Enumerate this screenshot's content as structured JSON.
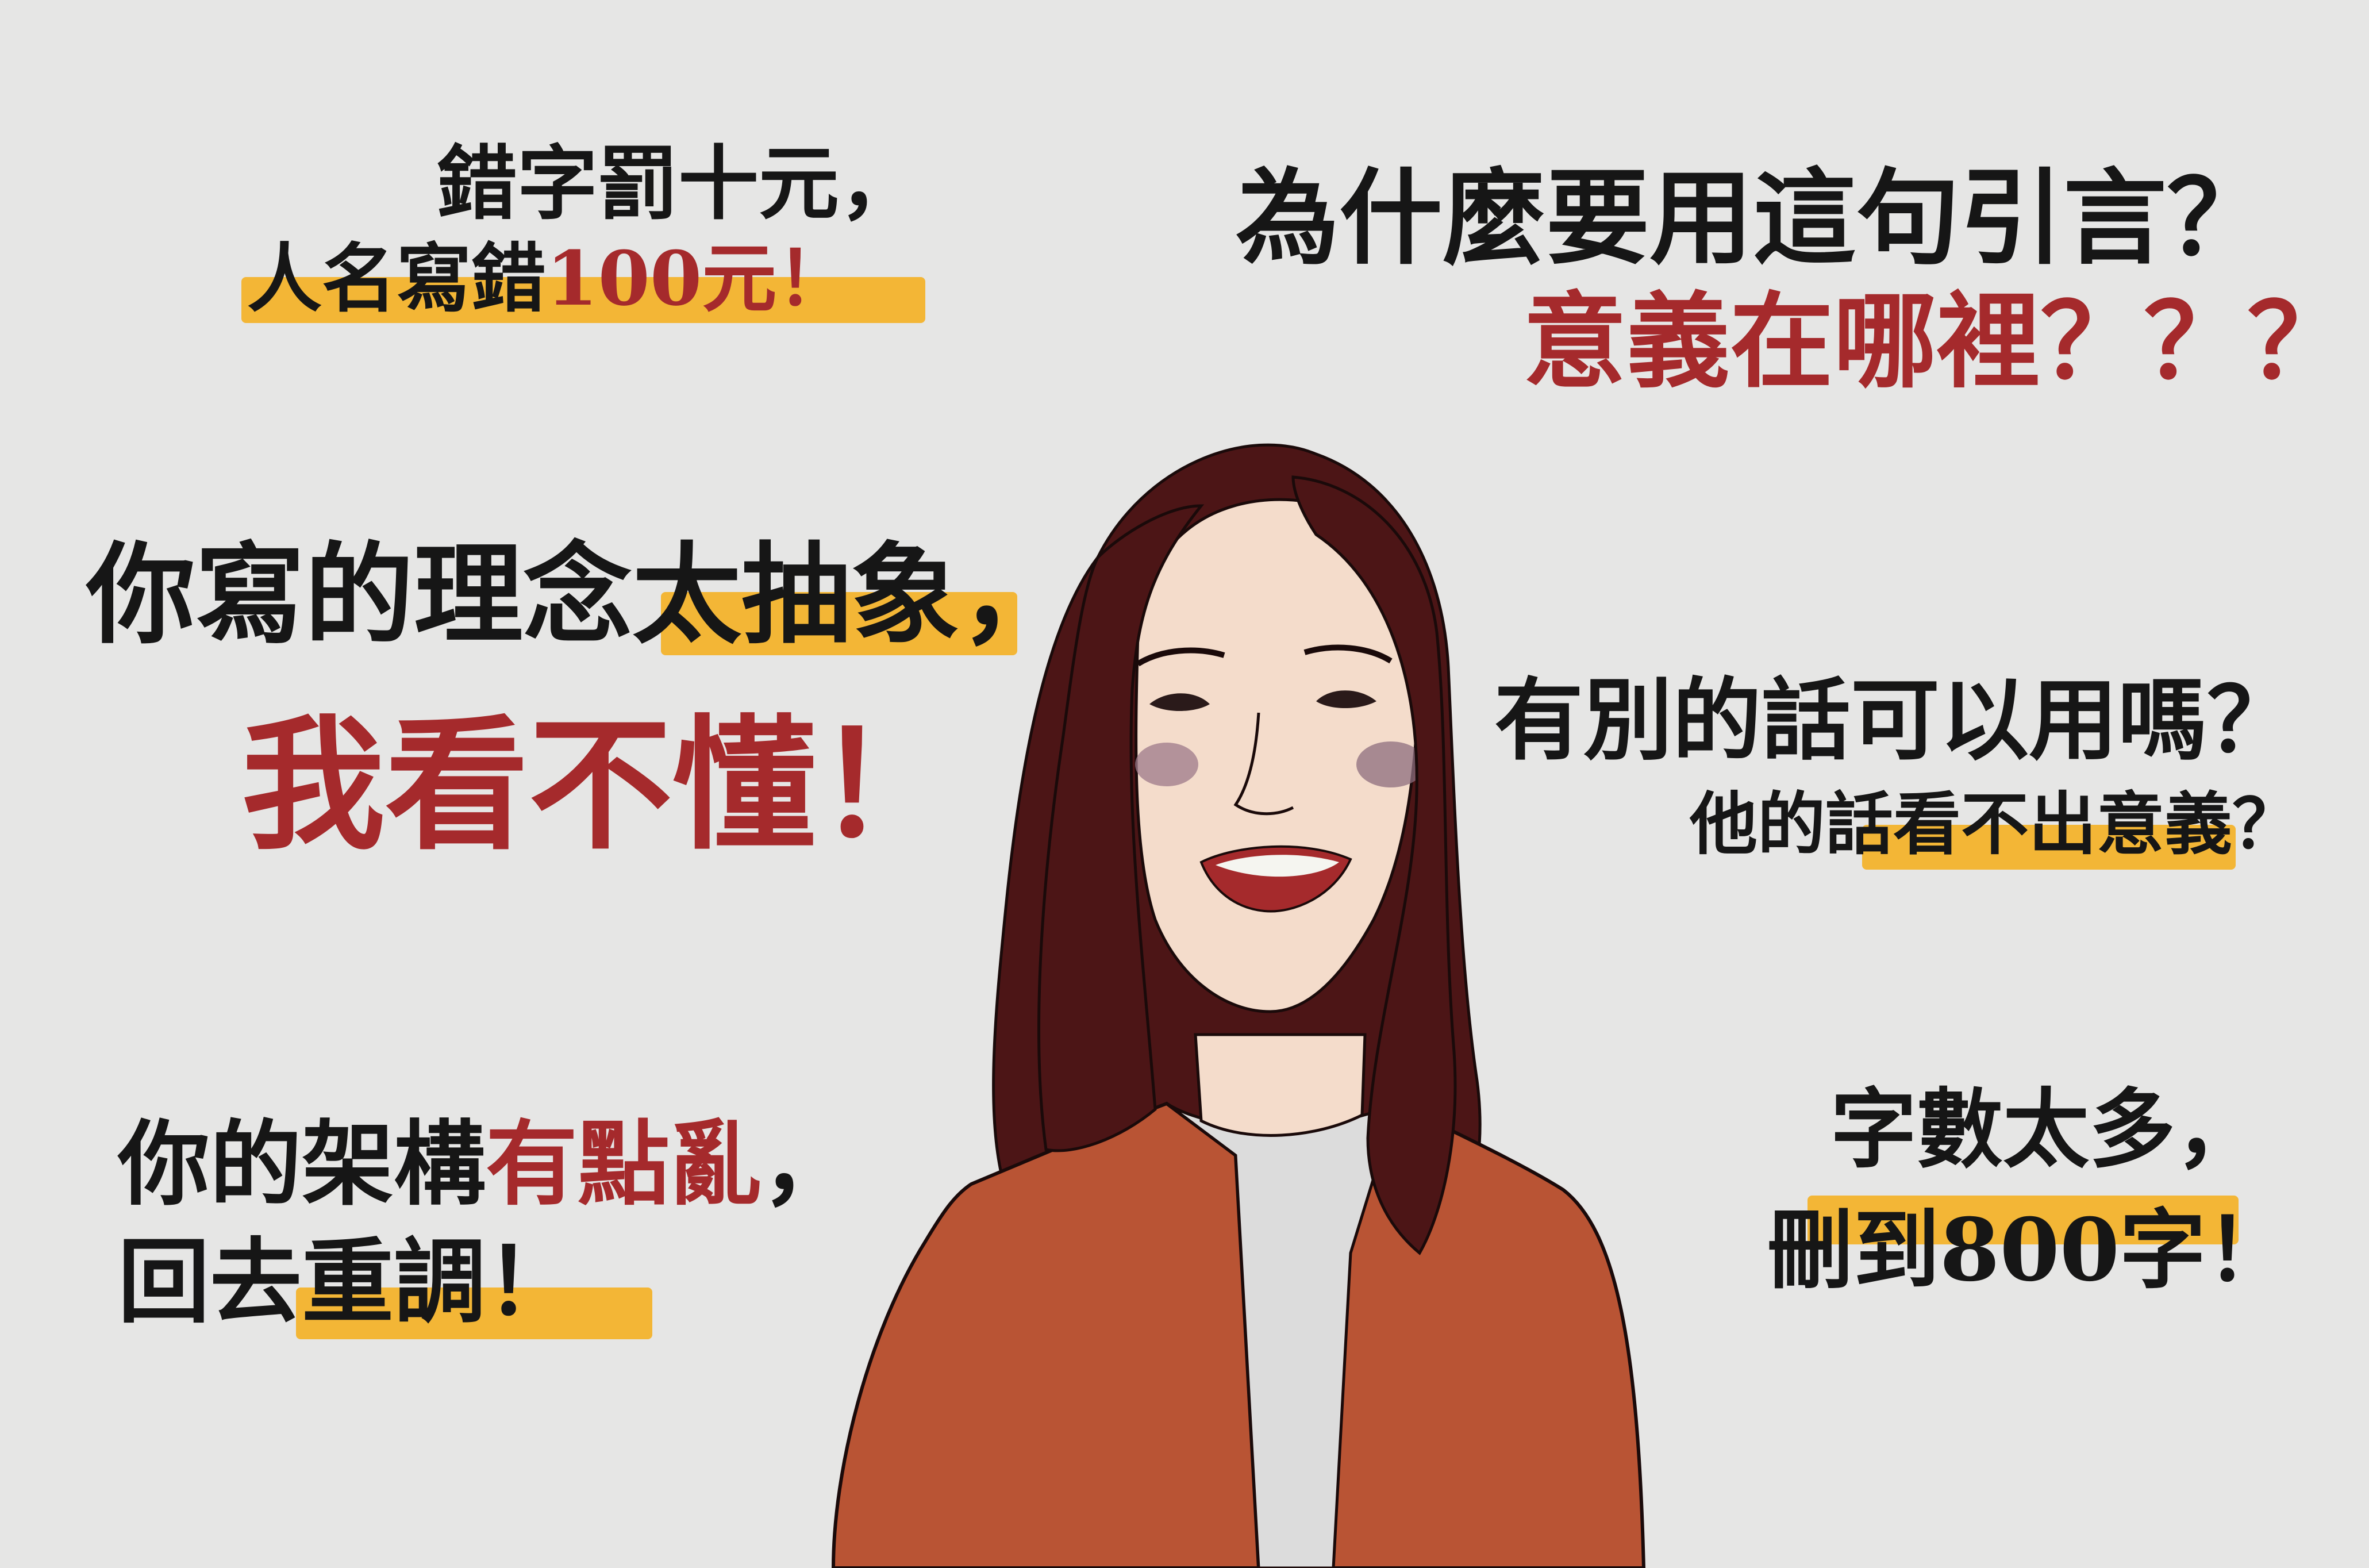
{
  "colors": {
    "background": "#e6e6e5",
    "text": "#161616",
    "emphasis_red": "#a52a2c",
    "highlight_yellow": "#f3b32c",
    "hair": "#4c1516",
    "jacket": "#b95434",
    "skin": "#f4dccb",
    "shirt": "#dcdcdc"
  },
  "quotes": {
    "typo": {
      "line1": "錯字罰十元，",
      "line2_black": "人名寫錯",
      "line2_red": "100元！"
    },
    "quote_why": {
      "line1": "為什麼要用這句引言？",
      "line2": "意義在哪裡？？？"
    },
    "abstract": {
      "line1_a": "你寫的理念",
      "line1_b": "太抽象",
      "line1_c": "，",
      "line2": "我看不懂！"
    },
    "other_words": {
      "line1": "有別的話可以用嗎？",
      "line2_a": "他的話",
      "line2_b": "看不出意義",
      "line2_c": "？"
    },
    "structure": {
      "line1_black": "你的架構",
      "line1_red": "有點亂",
      "line1_tail": "，",
      "line2_a": "回去",
      "line2_b": "重調",
      "line2_c": "！"
    },
    "word_count": {
      "line1": "字數太多，",
      "line2": "刪到800字！"
    }
  }
}
